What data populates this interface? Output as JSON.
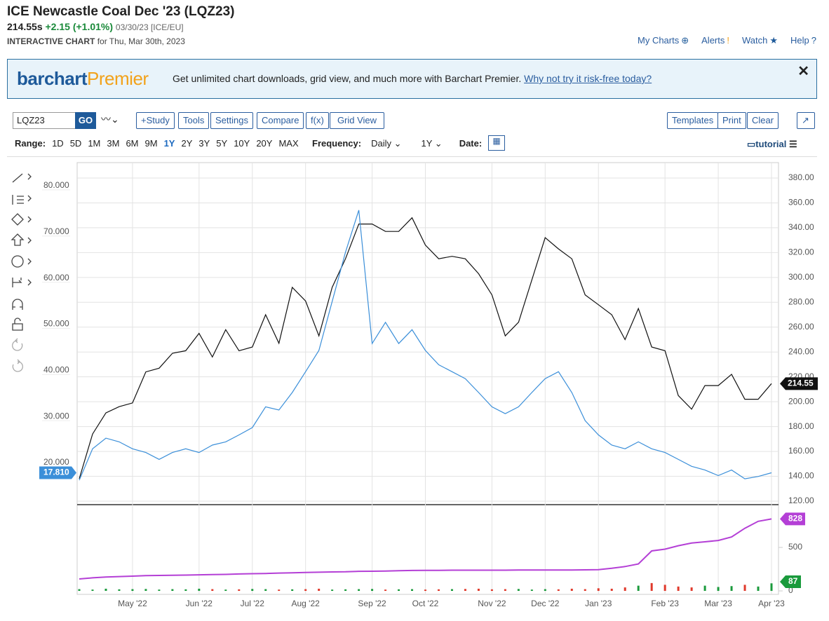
{
  "header": {
    "title": "ICE Newcastle Coal Dec '23 (LQZ23)",
    "price": "214.55s",
    "change": "+2.15 (+1.01%)",
    "meta": "03/30/23 [ICE/EU]",
    "subtitle_bold": "INTERACTIVE CHART",
    "subtitle": "for Thu, Mar 30th, 2023",
    "nav": [
      "My Charts",
      "Alerts",
      "Watch",
      "Help"
    ]
  },
  "banner": {
    "logo_a": "barchart",
    "logo_b": "Premier",
    "text": "Get unlimited chart downloads, grid view, and much more with Barchart Premier.",
    "link": "Why not try it risk-free today?"
  },
  "toolbar": {
    "symbol": "LQZ23",
    "go": "GO",
    "buttons": [
      "+Study",
      "Tools",
      "Settings",
      "Compare",
      "f(x)",
      "Grid View"
    ],
    "right_buttons": [
      "Templates",
      "Print",
      "Clear"
    ]
  },
  "range": {
    "label": "Range:",
    "options": [
      "1D",
      "5D",
      "1M",
      "3M",
      "6M",
      "9M",
      "1Y",
      "2Y",
      "3Y",
      "5Y",
      "10Y",
      "20Y",
      "MAX"
    ],
    "active_index": 6,
    "frequency_label": "Frequency:",
    "frequency": "Daily",
    "period": "1Y",
    "date_label": "Date:",
    "tutorial": "tutorial"
  },
  "chart_data": [
    {
      "type": "line",
      "categories": [
        null,
        null,
        null,
        null,
        "May '22",
        null,
        null,
        null,
        null,
        "Jun '22",
        null,
        null,
        null,
        "Jul '22",
        null,
        null,
        null,
        "Aug '22",
        null,
        null,
        null,
        null,
        "Sep '22",
        null,
        null,
        null,
        "Oct '22",
        null,
        null,
        null,
        null,
        "Nov '22",
        null,
        null,
        null,
        "Dec '22",
        null,
        null,
        null,
        "Jan '23",
        null,
        null,
        null,
        null,
        "Feb '23",
        null,
        null,
        null,
        "Mar '23",
        null,
        null,
        null,
        "Apr '23"
      ],
      "series": [
        {
          "color": "#111111",
          "axis": "y2",
          "values": [
            138,
            174,
            191,
            196,
            199,
            224,
            227,
            239,
            241,
            255,
            236,
            258,
            241,
            244,
            270,
            247,
            292,
            281,
            253,
            292,
            315,
            343,
            343,
            337,
            337,
            348,
            326,
            315,
            317,
            315,
            303,
            286,
            253,
            264,
            298,
            332,
            323,
            315,
            286,
            278,
            270,
            250,
            275,
            244,
            241,
            205,
            194,
            213,
            213,
            222,
            202,
            202,
            214.55
          ]
        },
        {
          "color": "#3b8fd9",
          "axis": "y",
          "last_label": "17.810",
          "values": [
            16.2,
            23.0,
            25.3,
            24.5,
            23.0,
            22.2,
            20.7,
            22.2,
            23.0,
            22.2,
            23.8,
            24.5,
            26.0,
            27.6,
            32.1,
            31.4,
            35.2,
            39.7,
            44.3,
            54.9,
            65.6,
            74.7,
            45.8,
            50.4,
            45.8,
            48.8,
            44.3,
            41.2,
            39.7,
            38.2,
            35.2,
            32.1,
            30.6,
            32.1,
            35.2,
            38.2,
            39.7,
            35.2,
            29.1,
            26.0,
            23.8,
            23.0,
            24.5,
            23.0,
            22.2,
            20.7,
            19.2,
            18.4,
            17.2,
            18.4,
            16.5,
            17.0,
            17.81
          ]
        }
      ],
      "ylim": [
        11.2,
        85
      ],
      "yticks": [
        {
          "value": 20,
          "label": "20.000"
        },
        {
          "value": 30,
          "label": "30.000"
        },
        {
          "value": 40,
          "label": "40.000"
        },
        {
          "value": 50,
          "label": "50.000"
        },
        {
          "value": 60,
          "label": "60.000"
        },
        {
          "value": 70,
          "label": "70.000"
        },
        {
          "value": 80,
          "label": "80.000"
        }
      ],
      "y2lim": [
        118.3,
        392.4
      ],
      "y2ticks": [
        {
          "value": 120,
          "label": "120.00"
        },
        {
          "value": 140,
          "label": "140.00"
        },
        {
          "value": 160,
          "label": "160.00"
        },
        {
          "value": 180,
          "label": "180.00"
        },
        {
          "value": 200,
          "label": "200.00"
        },
        {
          "value": 220,
          "label": "220.00"
        },
        {
          "value": 240,
          "label": "240.00"
        },
        {
          "value": 260,
          "label": "260.00"
        },
        {
          "value": 280,
          "label": "280.00"
        },
        {
          "value": 300,
          "label": "300.00"
        },
        {
          "value": 320,
          "label": "320.00"
        },
        {
          "value": 340,
          "label": "340.00"
        },
        {
          "value": 360,
          "label": "360.00"
        },
        {
          "value": 380,
          "label": "380.00"
        }
      ],
      "grid": true
    },
    {
      "type": "bar",
      "up_color": "#1a9a3c",
      "down_color": "#e0392b",
      "values": [
        20,
        15,
        25,
        18,
        20,
        22,
        15,
        20,
        18,
        25,
        20,
        15,
        18,
        22,
        20,
        15,
        18,
        20,
        25,
        15,
        18,
        20,
        22,
        15,
        18,
        20,
        15,
        18,
        20,
        22,
        25,
        18,
        20,
        22,
        15,
        20,
        18,
        25,
        20,
        30,
        25,
        40,
        60,
        90,
        70,
        50,
        40,
        60,
        45,
        55,
        70,
        50,
        87
      ],
      "line": {
        "color": "#b43fd6",
        "values": [
          137,
          150,
          160,
          165,
          170,
          175,
          178,
          180,
          182,
          185,
          188,
          190,
          195,
          198,
          200,
          205,
          208,
          212,
          215,
          218,
          220,
          225,
          226,
          228,
          232,
          235,
          236,
          236,
          238,
          238,
          238,
          238,
          238,
          240,
          240,
          240,
          240,
          240,
          242,
          245,
          260,
          280,
          310,
          460,
          480,
          520,
          550,
          565,
          580,
          620,
          720,
          800,
          828
        ]
      },
      "ylim": [
        -40,
        976
      ],
      "yticks": [
        0,
        500
      ]
    }
  ]
}
